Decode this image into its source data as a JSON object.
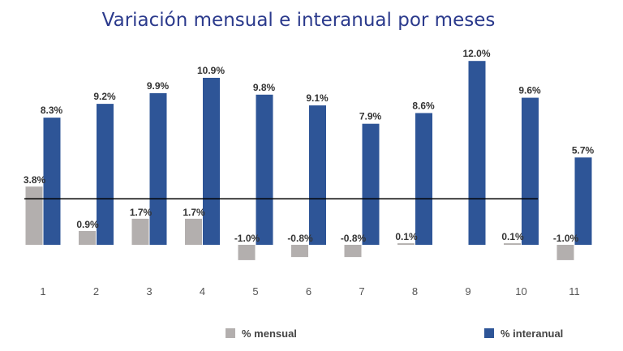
{
  "chart_data": {
    "type": "bar",
    "title": "Variación mensual e interanual por meses",
    "categories": [
      "1",
      "2",
      "3",
      "4",
      "5",
      "6",
      "7",
      "8",
      "9",
      "10",
      "11"
    ],
    "series": [
      {
        "name": "% mensual",
        "color": "#b3afae",
        "values": [
          3.8,
          0.9,
          1.7,
          1.7,
          -1.0,
          -0.8,
          -0.8,
          0.1,
          null,
          0.1,
          -1.0
        ],
        "labels": [
          "3.8%",
          "0.9%",
          "1.7%",
          "1.7%",
          "-1.0%",
          "-0.8%",
          "-0.8%",
          "0.1%",
          "",
          "0.1%",
          "-1.0%"
        ]
      },
      {
        "name": "% interanual",
        "color": "#2e5597",
        "values": [
          8.3,
          9.2,
          9.9,
          10.9,
          9.8,
          9.1,
          7.9,
          8.6,
          12.0,
          9.6,
          5.7
        ],
        "labels": [
          "8.3%",
          "9.2%",
          "9.9%",
          "10.9%",
          "9.8%",
          "9.1%",
          "7.9%",
          "8.6%",
          "12.0%",
          "9.6%",
          "5.7%"
        ]
      }
    ],
    "reference_line": 3.0,
    "legend_position": "bottom",
    "grid": false
  }
}
